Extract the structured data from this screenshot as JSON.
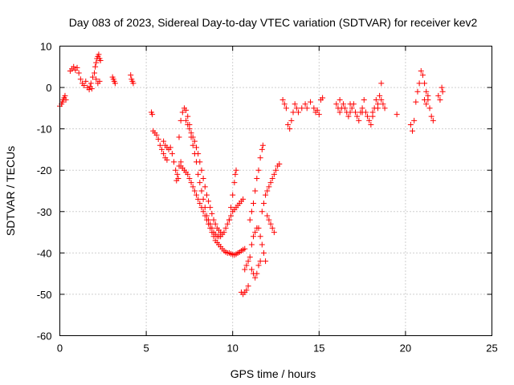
{
  "chart_data": {
    "type": "scatter",
    "title": "Day 083 of 2023, Sidereal Day-to-day VTEC variation (SDTVAR) for receiver kev2",
    "xlabel": "GPS time / hours",
    "ylabel": "SDTVAR / TECUs",
    "xlim": [
      0,
      25
    ],
    "ylim": [
      -60,
      10
    ],
    "x_ticks": [
      0,
      5,
      10,
      15,
      20,
      25
    ],
    "x_tick_labels": [
      "0",
      "5",
      "10",
      "15",
      "20",
      "25"
    ],
    "y_ticks": [
      10,
      0,
      -10,
      -20,
      -30,
      -40,
      -50,
      -60
    ],
    "y_tick_labels": [
      "10",
      "0",
      "-10",
      "-20",
      "-30",
      "-40",
      "-50",
      "-60"
    ],
    "grid": true,
    "marker": "+",
    "color": "#ff0000",
    "segments": [
      {
        "name": "early-rise",
        "points": [
          [
            0.0,
            -4.5
          ],
          [
            0.1,
            -4
          ],
          [
            0.15,
            -3.5
          ],
          [
            0.2,
            -3
          ],
          [
            0.25,
            -2.5
          ],
          [
            0.3,
            -2
          ],
          [
            0.35,
            -3
          ]
        ]
      },
      {
        "name": "early-cluster",
        "points": [
          [
            0.6,
            4
          ],
          [
            0.7,
            4.5
          ],
          [
            0.8,
            5
          ],
          [
            0.9,
            4.2
          ],
          [
            1.0,
            4.8
          ],
          [
            1.1,
            3.5
          ],
          [
            1.2,
            2
          ],
          [
            1.3,
            1
          ],
          [
            1.4,
            0.5
          ],
          [
            1.5,
            1.5
          ],
          [
            1.6,
            0
          ],
          [
            1.7,
            -0.5
          ],
          [
            1.8,
            1
          ],
          [
            1.9,
            2.5
          ],
          [
            2.0,
            3.5
          ],
          [
            2.05,
            5
          ],
          [
            2.1,
            6
          ],
          [
            2.15,
            7
          ],
          [
            2.2,
            7.5
          ],
          [
            2.25,
            8
          ],
          [
            2.3,
            7
          ],
          [
            2.35,
            6.5
          ],
          [
            2.1,
            2
          ],
          [
            2.2,
            1
          ],
          [
            2.3,
            1.5
          ],
          [
            1.75,
            0.2
          ],
          [
            1.85,
            -0.3
          ]
        ]
      },
      {
        "name": "isolated-3h",
        "points": [
          [
            3.05,
            2.5
          ],
          [
            3.1,
            2
          ],
          [
            3.15,
            1.5
          ],
          [
            3.2,
            1
          ]
        ]
      },
      {
        "name": "isolated-4h",
        "points": [
          [
            4.1,
            3
          ],
          [
            4.15,
            2
          ],
          [
            4.2,
            1.5
          ],
          [
            4.25,
            1
          ]
        ]
      },
      {
        "name": "drop-5-6h",
        "points": [
          [
            5.3,
            -6
          ],
          [
            5.35,
            -6.5
          ],
          [
            5.4,
            -10.5
          ],
          [
            5.5,
            -11
          ],
          [
            5.6,
            -11.5
          ],
          [
            5.7,
            -12.5
          ],
          [
            5.8,
            -14
          ],
          [
            5.9,
            -15
          ],
          [
            6.0,
            -16
          ],
          [
            6.1,
            -17
          ],
          [
            6.2,
            -17.5
          ],
          [
            6.0,
            -13
          ],
          [
            6.1,
            -14
          ],
          [
            6.2,
            -14.5
          ],
          [
            6.3,
            -15
          ],
          [
            6.4,
            -14.5
          ],
          [
            6.5,
            -16
          ],
          [
            6.6,
            -18
          ],
          [
            6.7,
            -20
          ],
          [
            6.8,
            -21
          ],
          [
            6.9,
            -19
          ],
          [
            7.0,
            -18
          ],
          [
            6.85,
            -22
          ],
          [
            6.75,
            -22.5
          ]
        ]
      },
      {
        "name": "upper-arc",
        "points": [
          [
            6.9,
            -12
          ],
          [
            7.0,
            -8
          ],
          [
            7.1,
            -6
          ],
          [
            7.2,
            -5
          ],
          [
            7.3,
            -5.5
          ],
          [
            7.4,
            -7
          ],
          [
            7.5,
            -9
          ],
          [
            7.6,
            -12
          ],
          [
            7.7,
            -14
          ],
          [
            7.8,
            -16
          ],
          [
            7.9,
            -18
          ],
          [
            8.0,
            -21
          ],
          [
            8.1,
            -23
          ],
          [
            8.2,
            -25
          ],
          [
            8.3,
            -27
          ],
          [
            8.4,
            -29
          ],
          [
            8.5,
            -31
          ],
          [
            8.6,
            -32
          ],
          [
            8.7,
            -33
          ],
          [
            8.8,
            -34
          ],
          [
            8.9,
            -35
          ],
          [
            9.0,
            -35.5
          ],
          [
            9.1,
            -36
          ],
          [
            9.2,
            -36
          ],
          [
            9.3,
            -36
          ],
          [
            9.4,
            -35.5
          ],
          [
            9.5,
            -35
          ],
          [
            9.6,
            -34
          ],
          [
            9.7,
            -33
          ],
          [
            9.8,
            -32
          ],
          [
            9.9,
            -31
          ],
          [
            10.0,
            -30
          ],
          [
            10.1,
            -29.5
          ],
          [
            10.2,
            -29
          ],
          [
            10.3,
            -28.5
          ],
          [
            10.4,
            -28
          ],
          [
            10.5,
            -27.5
          ],
          [
            10.6,
            -27
          ]
        ]
      },
      {
        "name": "lower-arc",
        "points": [
          [
            7.0,
            -19
          ],
          [
            7.1,
            -19.5
          ],
          [
            7.2,
            -20
          ],
          [
            7.3,
            -20.5
          ],
          [
            7.4,
            -21
          ],
          [
            7.5,
            -22
          ],
          [
            7.6,
            -23
          ],
          [
            7.7,
            -24
          ],
          [
            7.8,
            -25
          ],
          [
            7.9,
            -26
          ],
          [
            8.0,
            -27
          ],
          [
            8.1,
            -28
          ],
          [
            8.2,
            -29
          ],
          [
            8.3,
            -30
          ],
          [
            8.4,
            -31
          ],
          [
            8.5,
            -32
          ],
          [
            8.6,
            -33
          ],
          [
            8.7,
            -34
          ],
          [
            8.8,
            -35
          ],
          [
            8.9,
            -36
          ],
          [
            9.0,
            -37
          ],
          [
            9.1,
            -37.5
          ],
          [
            9.2,
            -38
          ],
          [
            9.3,
            -38.5
          ],
          [
            9.4,
            -39
          ],
          [
            9.5,
            -39.5
          ],
          [
            9.6,
            -39.8
          ],
          [
            9.7,
            -40
          ],
          [
            9.8,
            -40
          ],
          [
            9.9,
            -40.2
          ],
          [
            10.0,
            -40.4
          ],
          [
            10.1,
            -40.5
          ],
          [
            10.2,
            -40.3
          ],
          [
            10.3,
            -40
          ],
          [
            10.4,
            -39.8
          ],
          [
            10.5,
            -39.5
          ],
          [
            10.6,
            -39.2
          ],
          [
            10.7,
            -39
          ]
        ]
      },
      {
        "name": "middle-arc",
        "points": [
          [
            7.3,
            -8
          ],
          [
            7.4,
            -9
          ],
          [
            7.5,
            -10
          ],
          [
            7.6,
            -11
          ],
          [
            7.7,
            -12
          ],
          [
            7.8,
            -13
          ],
          [
            7.9,
            -14.5
          ],
          [
            8.0,
            -16
          ],
          [
            8.1,
            -18
          ],
          [
            8.2,
            -20
          ],
          [
            8.3,
            -22
          ],
          [
            8.4,
            -24
          ],
          [
            8.5,
            -26
          ],
          [
            8.6,
            -27.5
          ],
          [
            8.7,
            -29
          ],
          [
            8.8,
            -30.5
          ],
          [
            8.9,
            -32
          ],
          [
            9.0,
            -33
          ],
          [
            9.1,
            -34
          ],
          [
            9.2,
            -34.5
          ],
          [
            9.3,
            -35
          ]
        ]
      },
      {
        "name": "right-branches",
        "points": [
          [
            9.8,
            -32
          ],
          [
            9.9,
            -29
          ],
          [
            10.0,
            -26
          ],
          [
            10.1,
            -23
          ],
          [
            10.15,
            -21
          ],
          [
            10.2,
            -20
          ],
          [
            10.5,
            -49.5
          ],
          [
            10.6,
            -50
          ],
          [
            10.7,
            -49.5
          ],
          [
            10.8,
            -49
          ],
          [
            10.9,
            -48
          ],
          [
            10.7,
            -44
          ],
          [
            10.8,
            -43
          ],
          [
            10.9,
            -42
          ],
          [
            11.0,
            -41
          ],
          [
            11.1,
            -44
          ],
          [
            11.2,
            -45
          ],
          [
            11.3,
            -46
          ],
          [
            11.4,
            -45
          ],
          [
            11.5,
            -43
          ],
          [
            11.6,
            -42
          ],
          [
            11.0,
            -32
          ],
          [
            11.1,
            -30
          ],
          [
            11.2,
            -28
          ],
          [
            11.3,
            -25
          ],
          [
            11.4,
            -22
          ],
          [
            11.5,
            -20
          ],
          [
            11.6,
            -17
          ],
          [
            11.7,
            -15
          ],
          [
            11.75,
            -14
          ],
          [
            11.1,
            -38
          ],
          [
            11.2,
            -36
          ],
          [
            11.3,
            -35
          ],
          [
            11.4,
            -34
          ],
          [
            11.5,
            -34
          ],
          [
            11.6,
            -36
          ],
          [
            11.7,
            -38
          ],
          [
            11.8,
            -40
          ],
          [
            11.9,
            -42
          ],
          [
            11.7,
            -30
          ],
          [
            11.8,
            -28
          ],
          [
            11.9,
            -26
          ],
          [
            12.0,
            -25
          ],
          [
            12.1,
            -24
          ],
          [
            12.2,
            -23
          ],
          [
            12.3,
            -22
          ],
          [
            12.4,
            -21
          ],
          [
            12.5,
            -20
          ],
          [
            12.6,
            -19
          ],
          [
            12.7,
            -18.5
          ],
          [
            12.0,
            -31
          ],
          [
            12.1,
            -32
          ],
          [
            12.2,
            -33
          ],
          [
            12.3,
            -34
          ],
          [
            12.4,
            -35
          ]
        ]
      },
      {
        "name": "mid-13-15h",
        "points": [
          [
            12.9,
            -3
          ],
          [
            13.0,
            -4
          ],
          [
            13.1,
            -5
          ],
          [
            13.2,
            -9
          ],
          [
            13.3,
            -10
          ],
          [
            13.4,
            -8
          ],
          [
            13.5,
            -6
          ],
          [
            13.6,
            -4
          ],
          [
            13.7,
            -5
          ],
          [
            13.8,
            -6
          ],
          [
            14.0,
            -5
          ],
          [
            14.2,
            -4
          ],
          [
            14.3,
            -5
          ],
          [
            14.5,
            -3.5
          ],
          [
            14.7,
            -5
          ],
          [
            14.8,
            -6
          ],
          [
            14.9,
            -5.5
          ],
          [
            15.0,
            -6.5
          ],
          [
            15.1,
            -3
          ],
          [
            15.2,
            -2.5
          ]
        ]
      },
      {
        "name": "cluster-16-19h",
        "points": [
          [
            16.0,
            -4
          ],
          [
            16.1,
            -5
          ],
          [
            16.2,
            -6
          ],
          [
            16.3,
            -5
          ],
          [
            16.4,
            -4
          ],
          [
            16.5,
            -5
          ],
          [
            16.6,
            -6
          ],
          [
            16.7,
            -7
          ],
          [
            16.8,
            -6
          ],
          [
            16.9,
            -5
          ],
          [
            17.0,
            -4
          ],
          [
            17.1,
            -6
          ],
          [
            17.2,
            -7
          ],
          [
            17.3,
            -8
          ],
          [
            17.4,
            -6
          ],
          [
            17.5,
            -5
          ],
          [
            17.6,
            -3
          ],
          [
            17.7,
            -6
          ],
          [
            17.8,
            -7
          ],
          [
            17.9,
            -8
          ],
          [
            18.0,
            -9
          ],
          [
            18.1,
            -7
          ],
          [
            18.2,
            -5
          ],
          [
            18.3,
            -3
          ],
          [
            18.4,
            -4
          ],
          [
            18.5,
            -2
          ],
          [
            18.6,
            1
          ],
          [
            18.7,
            -4
          ],
          [
            18.8,
            -5
          ],
          [
            16.2,
            -3
          ],
          [
            16.8,
            -4
          ],
          [
            17.5,
            -6
          ],
          [
            18.1,
            -6
          ],
          [
            18.4,
            -5
          ],
          [
            18.6,
            -3
          ]
        ]
      },
      {
        "name": "isolated-19-5h",
        "points": [
          [
            19.5,
            -6.5
          ]
        ]
      },
      {
        "name": "cluster-20-22h",
        "points": [
          [
            20.3,
            -9
          ],
          [
            20.4,
            -10.5
          ],
          [
            20.5,
            -8
          ],
          [
            20.6,
            -3.5
          ],
          [
            20.7,
            -1
          ],
          [
            20.8,
            1
          ],
          [
            20.9,
            4
          ],
          [
            21.0,
            3
          ],
          [
            21.1,
            1
          ],
          [
            21.2,
            -1
          ],
          [
            21.3,
            -3
          ],
          [
            21.4,
            -5
          ],
          [
            21.5,
            -7
          ],
          [
            21.6,
            -8
          ],
          [
            21.1,
            -3
          ],
          [
            21.2,
            -4
          ],
          [
            21.3,
            -2
          ],
          [
            21.9,
            -2
          ],
          [
            22.0,
            -3
          ],
          [
            22.1,
            0
          ],
          [
            22.15,
            -1
          ]
        ]
      }
    ]
  }
}
